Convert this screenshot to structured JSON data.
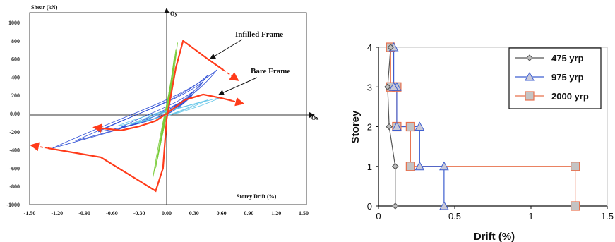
{
  "chart_data": [
    {
      "type": "line",
      "title": "",
      "xlabel": "Storey Drift (%)",
      "ylabel": "Shear (kN)",
      "axis_x_name": "Ox",
      "axis_y_name": "Oy",
      "xlim": [
        -1.5,
        1.5
      ],
      "ylim": [
        -1000,
        1000
      ],
      "x_ticks": [
        "-1.50",
        "-1.20",
        "-0.90",
        "-0.60",
        "-0.30",
        "0.00",
        "0.30",
        "0.60",
        "0.90",
        "1.20",
        "1.50"
      ],
      "y_ticks": [
        "1000",
        "800",
        "600",
        "400",
        "200",
        "0.00",
        "-200",
        "-400",
        "-600",
        "-800",
        "-1000"
      ],
      "annotations": [
        "Infilled Frame",
        "Bare Frame"
      ],
      "colors": {
        "infilled": "#ff3b1a",
        "bare": "#ff3b1a",
        "hysteresis_blue": "#2f4fd6",
        "hysteresis_green": "#7acc3a",
        "hysteresis_cyan": "#66c6e8"
      },
      "series": [
        {
          "name": "Infilled Frame",
          "x": [
            -1.3,
            -0.72,
            -0.12,
            -0.04,
            0.0,
            0.1,
            0.18,
            0.45,
            0.62
          ],
          "y": [
            -380,
            -480,
            -850,
            -600,
            -60,
            500,
            800,
            600,
            480
          ]
        },
        {
          "name": "Bare Frame",
          "x": [
            -0.72,
            -0.5,
            -0.3,
            -0.12,
            0.0,
            0.2,
            0.4,
            0.6,
            0.72
          ],
          "y": [
            -160,
            -185,
            -140,
            -80,
            0,
            150,
            210,
            170,
            140
          ]
        }
      ]
    },
    {
      "type": "line",
      "title": "",
      "xlabel": "Drift (%)",
      "ylabel": "Storey",
      "xlim": [
        0,
        1.5
      ],
      "ylim": [
        0,
        4
      ],
      "x_ticks": [
        "0",
        "0.5",
        "1",
        "1.5"
      ],
      "y_ticks": [
        "0",
        "1",
        "2",
        "3",
        "4"
      ],
      "legend_position": "top-right",
      "grid": false,
      "series": [
        {
          "name": "475 yrp",
          "color": "#555555",
          "marker": "diamond",
          "x": [
            0.11,
            0.11,
            0.11,
            0.07,
            0.07,
            0.06,
            0.06,
            0.08
          ],
          "y": [
            0,
            1,
            1,
            2,
            2,
            3,
            3,
            4
          ]
        },
        {
          "name": "975 yrp",
          "color": "#3f5fd0",
          "marker": "triangle",
          "x": [
            0.43,
            0.43,
            0.27,
            0.27,
            0.12,
            0.12,
            0.1,
            0.1
          ],
          "y": [
            0,
            1,
            1,
            2,
            2,
            3,
            3,
            4
          ]
        },
        {
          "name": "2000 yrp",
          "color": "#e8704c",
          "marker": "square",
          "x": [
            1.29,
            1.29,
            0.21,
            0.21,
            0.12,
            0.12,
            0.08,
            0.08
          ],
          "y": [
            0,
            1,
            1,
            2,
            2,
            3,
            3,
            4
          ]
        }
      ]
    }
  ]
}
